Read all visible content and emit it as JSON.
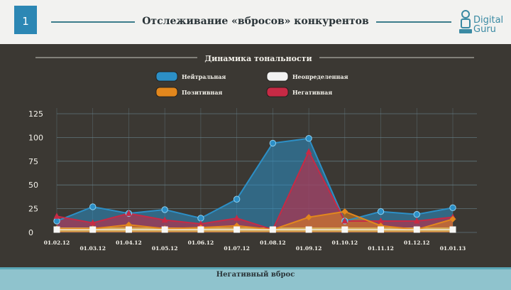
{
  "slide": {
    "number": "1",
    "title": "Отслеживание «вбросов» конкурентов",
    "footer": "Негативный вброс"
  },
  "logo": {
    "line1": "Digital",
    "line2": "Guru",
    "icon": "digital-guru-logo-icon"
  },
  "colors": {
    "neutral": "#2c8fc6",
    "positive": "#e2871d",
    "negative": "#c72a45",
    "undefined": "#f2f2f2",
    "accent": "#3d7d8b"
  },
  "chart_data": {
    "type": "area",
    "title": "Динамика тональности",
    "xlabel": "",
    "ylabel": "",
    "categories": [
      "01.02.12",
      "01.03.12",
      "01.04.12",
      "01.05.12",
      "01.06.12",
      "01.07.12",
      "01.08.12",
      "01.09.12",
      "01.10.12",
      "01.11.12",
      "01.12.12",
      "01.01.13"
    ],
    "ylim": [
      0,
      125
    ],
    "yticks": [
      0,
      25,
      50,
      75,
      100,
      125
    ],
    "grid": true,
    "legend_position": "top",
    "series": [
      {
        "name": "Нейтральная",
        "values": [
          12,
          27,
          20,
          24,
          15,
          35,
          94,
          99,
          12,
          22,
          19,
          26
        ]
      },
      {
        "name": "Неопределенная",
        "values": [
          3,
          3,
          3,
          3,
          3,
          3,
          3,
          3,
          3,
          3,
          3,
          3
        ]
      },
      {
        "name": "Позитивная",
        "values": [
          4,
          4,
          8,
          4,
          5,
          7,
          3,
          16,
          22,
          7,
          3,
          14
        ]
      },
      {
        "name": "Негативная",
        "values": [
          17,
          10,
          20,
          13,
          9,
          15,
          3,
          85,
          12,
          12,
          12,
          16
        ]
      }
    ]
  }
}
